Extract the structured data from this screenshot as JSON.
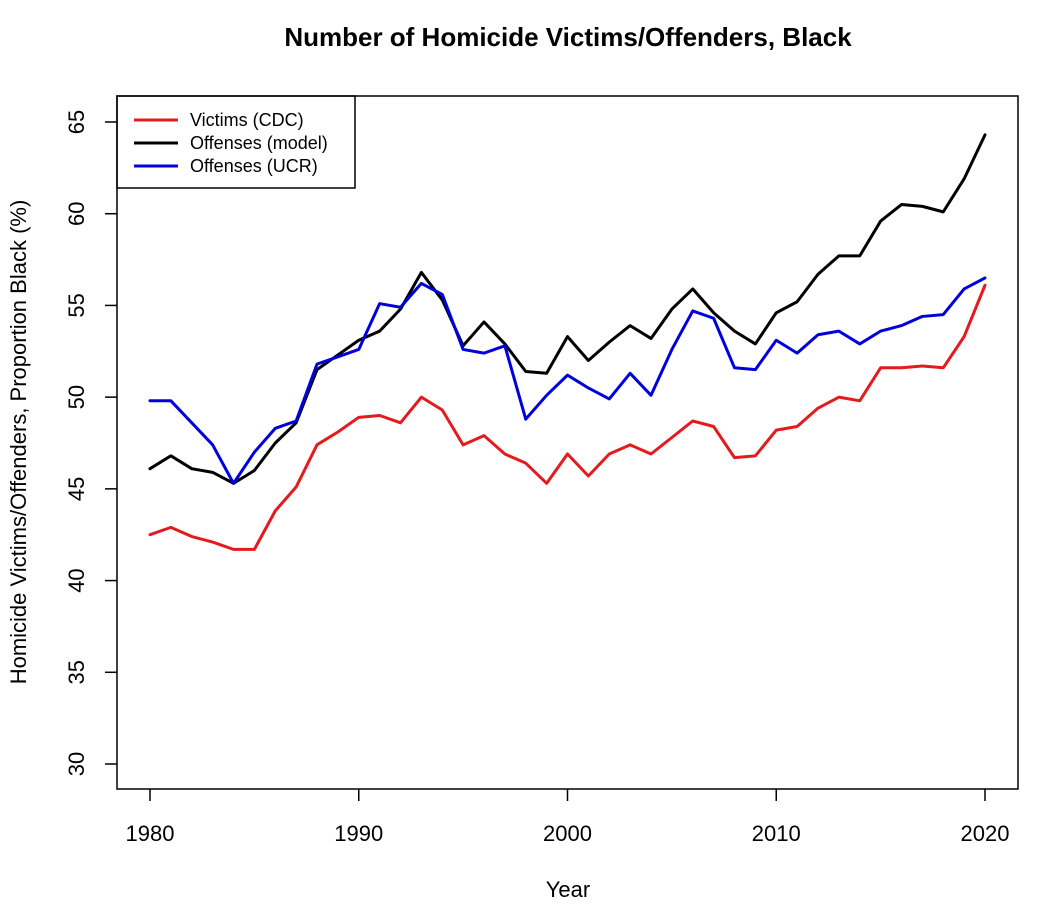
{
  "chart_data": {
    "type": "line",
    "title": "Number of Homicide Victims/Offenders, Black",
    "xlabel": "Year",
    "ylabel": "Homicide Victims/Offenders, Proportion Black (%)",
    "xlim": [
      1980,
      2020
    ],
    "ylim": [
      30,
      65
    ],
    "x_ticks": [
      1980,
      1990,
      2000,
      2010,
      2020
    ],
    "y_ticks": [
      30,
      35,
      40,
      45,
      50,
      55,
      60,
      65
    ],
    "grid": false,
    "legend_position": "top-left",
    "x": [
      1980,
      1981,
      1982,
      1983,
      1984,
      1985,
      1986,
      1987,
      1988,
      1989,
      1990,
      1991,
      1992,
      1993,
      1994,
      1995,
      1996,
      1997,
      1998,
      1999,
      2000,
      2001,
      2002,
      2003,
      2004,
      2005,
      2006,
      2007,
      2008,
      2009,
      2010,
      2011,
      2012,
      2013,
      2014,
      2015,
      2016,
      2017,
      2018,
      2019,
      2020
    ],
    "series": [
      {
        "name": "Victims (CDC)",
        "color": "#e41a1c",
        "values": [
          42.5,
          42.9,
          42.4,
          42.1,
          41.7,
          41.7,
          43.8,
          45.1,
          47.4,
          48.1,
          48.9,
          49.0,
          48.6,
          50.0,
          49.3,
          47.4,
          47.9,
          46.9,
          46.4,
          45.3,
          46.9,
          45.7,
          46.9,
          47.4,
          46.9,
          47.8,
          48.7,
          48.4,
          46.7,
          46.8,
          48.2,
          48.4,
          49.4,
          50.0,
          49.8,
          51.6,
          51.6,
          51.7,
          51.6,
          53.3,
          56.1
        ]
      },
      {
        "name": "Offenses (model)",
        "color": "#000000",
        "values": [
          46.1,
          46.8,
          46.1,
          45.9,
          45.3,
          46.0,
          47.5,
          48.6,
          51.5,
          52.3,
          53.1,
          53.6,
          54.8,
          56.8,
          55.3,
          52.8,
          54.1,
          52.9,
          51.4,
          51.3,
          53.3,
          52.0,
          53.0,
          53.9,
          53.2,
          54.8,
          55.9,
          54.6,
          53.6,
          52.9,
          54.6,
          55.2,
          56.7,
          57.7,
          57.7,
          59.6,
          60.5,
          60.4,
          60.1,
          61.9,
          64.3
        ]
      },
      {
        "name": "Offenses (UCR)",
        "color": "#0000dd",
        "values": [
          49.8,
          49.8,
          48.6,
          47.4,
          45.3,
          47.0,
          48.3,
          48.7,
          51.8,
          52.2,
          52.6,
          55.1,
          54.9,
          56.2,
          55.6,
          52.6,
          52.4,
          52.8,
          48.8,
          50.1,
          51.2,
          50.5,
          49.9,
          51.3,
          50.1,
          52.6,
          54.7,
          54.3,
          51.6,
          51.5,
          53.1,
          52.4,
          53.4,
          53.6,
          52.9,
          53.6,
          53.9,
          54.4,
          54.5,
          55.9,
          56.5
        ]
      }
    ]
  }
}
